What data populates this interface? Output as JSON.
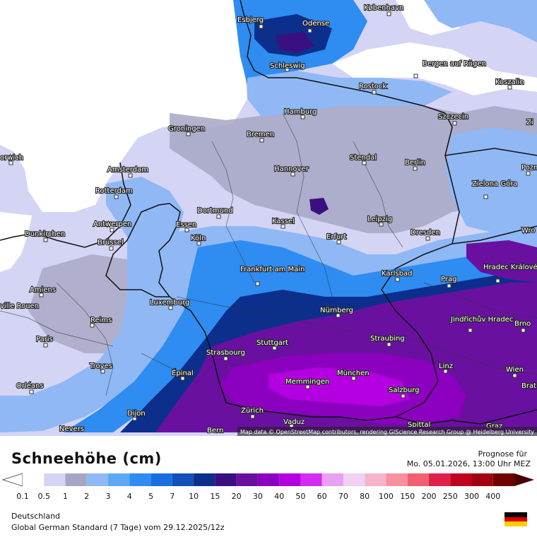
{
  "legend": {
    "title": "Schneehöhe (cm)",
    "forecast_label": "Prognose für",
    "forecast_time": "Mo. 05.01.2026, 13:00 Uhr MEZ",
    "region": "Deutschland",
    "model": "Global German Standard (7 Tage) vom  29.12.2025/12z",
    "scale": [
      {
        "label": "0.1",
        "color": "#ffffff"
      },
      {
        "label": "0.5",
        "color": "#d4d4f4"
      },
      {
        "label": "1",
        "color": "#a6a6c4"
      },
      {
        "label": "2",
        "color": "#8fb8f5"
      },
      {
        "label": "3",
        "color": "#5ca8f5"
      },
      {
        "label": "4",
        "color": "#2f8cf0"
      },
      {
        "label": "5",
        "color": "#1a6fe0"
      },
      {
        "label": "7",
        "color": "#1450b8"
      },
      {
        "label": "10",
        "color": "#0c2f8c"
      },
      {
        "label": "15",
        "color": "#3a1080"
      },
      {
        "label": "20",
        "color": "#6a10a0"
      },
      {
        "label": "30",
        "color": "#8c00c0"
      },
      {
        "label": "40",
        "color": "#b400e0"
      },
      {
        "label": "50",
        "color": "#d22cf0"
      },
      {
        "label": "60",
        "color": "#e8a0f0"
      },
      {
        "label": "70",
        "color": "#f0d0f4"
      },
      {
        "label": "80",
        "color": "#f5b4cc"
      },
      {
        "label": "100",
        "color": "#f890a0"
      },
      {
        "label": "150",
        "color": "#f06070"
      },
      {
        "label": "200",
        "color": "#e0204c"
      },
      {
        "label": "250",
        "color": "#c00020"
      },
      {
        "label": "300",
        "color": "#a00010"
      },
      {
        "label": "400",
        "color": "#700000"
      }
    ]
  },
  "map": {
    "attribution": "Map data © OpenStreetMap contributors, rendering GIScience Research Group @ Heidelberg University",
    "cities": [
      "Esbjerg",
      "Odense",
      "København",
      "Schleswig",
      "Bergen auf Rügen",
      "Rostock",
      "Koszalin",
      "Hamburg",
      "Szczecin",
      "Zi",
      "Bremen",
      "Groningen",
      "orwich",
      "Amsterdam",
      "Stendal",
      "Hannover",
      "Berlin",
      "Pozn",
      "Rotterdam",
      "Zielona Góra",
      "Dortmund",
      "Leipzig",
      "Antwerpen",
      "Essen",
      "Kassel",
      "Dunkirchen",
      "Erfurt",
      "Dresden",
      "Wro",
      "Brüssel",
      "Köln",
      "Hradec Králové",
      "Frankfurt am Main",
      "Karlsbad",
      "Prag",
      "Amiens",
      "Luxemburg",
      "Nürnberg",
      "Jindřichův Hradec",
      "Brno",
      "Reims",
      "Paris",
      "Straubing",
      "Stuttgart",
      "Strasbourg",
      "Troyes",
      "Linz",
      "Wien",
      "Épinal",
      "Memmingen",
      "München",
      "Brat",
      "Orléans",
      "Salzburg",
      "Dijon",
      "Zürich",
      "Vaduz",
      "Nevers",
      "Bern",
      "Graz",
      "Spittal",
      "ville Rouen"
    ]
  }
}
